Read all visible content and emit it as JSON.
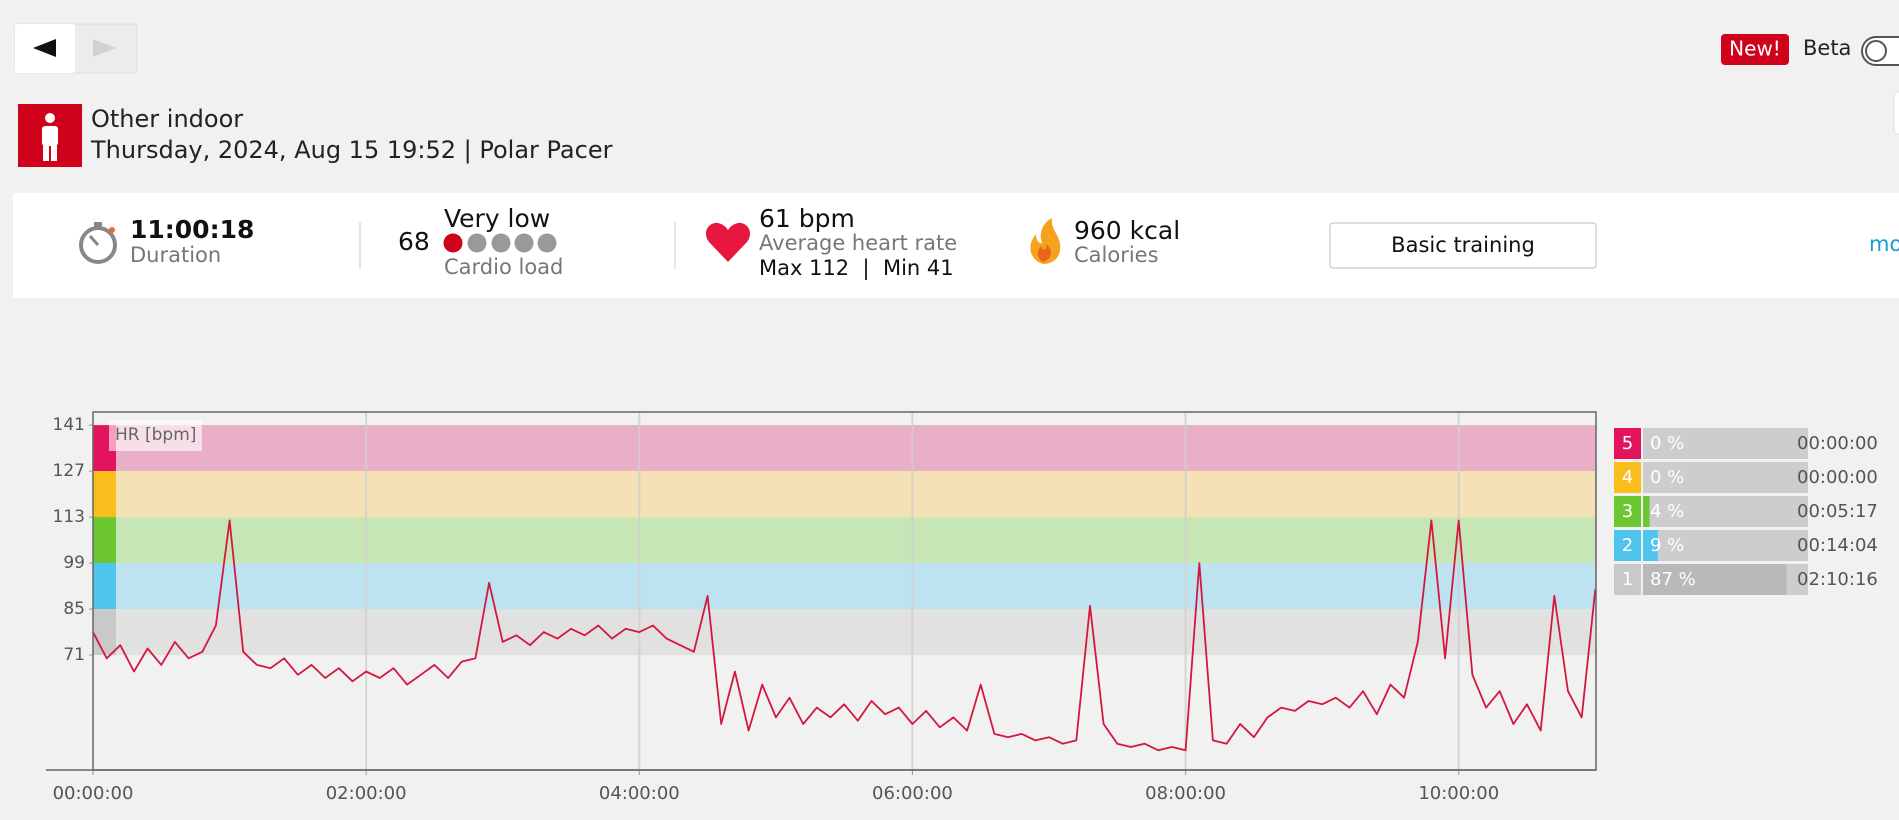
{
  "header": {
    "badge": "New!",
    "beta_label": "Beta"
  },
  "activity": {
    "sport": "Other indoor",
    "details": "Thursday, 2024, Aug 15 19:52 | Polar Pacer"
  },
  "summary": {
    "duration": "11:00:18",
    "duration_label": "Duration",
    "cardio_load": 68,
    "cardio_load_status": "Very low",
    "cardio_load_label": "Cardio load",
    "avg_hr": "61 bpm",
    "avg_hr_label": "Average heart rate",
    "max_min_hr": "Max 112  |  Min 41",
    "calories": "960 kcal",
    "calories_label": "Calories",
    "training_button": "Basic training",
    "more_link": "mo"
  },
  "chart_data": {
    "type": "line",
    "y_label": "HR [bpm]",
    "color": "#d4173f",
    "xlim": [
      0,
      11.005
    ],
    "ylim": [
      36,
      145
    ],
    "xticks": [
      {
        "value": 0,
        "label": "00:00:00"
      },
      {
        "value": 2,
        "label": "02:00:00"
      },
      {
        "value": 4,
        "label": "04:00:00"
      },
      {
        "value": 6,
        "label": "06:00:00"
      },
      {
        "value": 8,
        "label": "08:00:00"
      },
      {
        "value": 10,
        "label": "10:00:00"
      }
    ],
    "yticks": [
      71,
      85,
      99,
      113,
      127,
      141
    ],
    "x": [
      0.0,
      0.1,
      0.2,
      0.3,
      0.4,
      0.5,
      0.6,
      0.7,
      0.8,
      0.9,
      1.0,
      1.1,
      1.2,
      1.3,
      1.4,
      1.5,
      1.6,
      1.7,
      1.8,
      1.9,
      2.0,
      2.1,
      2.2,
      2.3,
      2.4,
      2.5,
      2.6,
      2.7,
      2.8,
      2.9,
      3.0,
      3.1,
      3.2,
      3.3,
      3.4,
      3.5,
      3.6,
      3.7,
      3.8,
      3.9,
      4.0,
      4.1,
      4.2,
      4.3,
      4.4,
      4.5,
      4.6,
      4.7,
      4.8,
      4.9,
      5.0,
      5.1,
      5.2,
      5.3,
      5.4,
      5.5,
      5.6,
      5.7,
      5.8,
      5.9,
      6.0,
      6.1,
      6.2,
      6.3,
      6.4,
      6.5,
      6.6,
      6.7,
      6.8,
      6.9,
      7.0,
      7.1,
      7.2,
      7.3,
      7.4,
      7.5,
      7.6,
      7.7,
      7.8,
      7.9,
      8.0,
      8.1,
      8.2,
      8.3,
      8.4,
      8.5,
      8.6,
      8.7,
      8.8,
      8.9,
      9.0,
      9.1,
      9.2,
      9.3,
      9.4,
      9.5,
      9.6,
      9.7,
      9.8,
      9.9,
      10.0,
      10.1,
      10.2,
      10.3,
      10.4,
      10.5,
      10.6,
      10.7,
      10.8,
      10.9,
      11.0
    ],
    "values": [
      78,
      70,
      74,
      66,
      73,
      68,
      75,
      70,
      72,
      80,
      112,
      72,
      68,
      67,
      70,
      65,
      68,
      64,
      67,
      63,
      66,
      64,
      67,
      62,
      65,
      68,
      64,
      69,
      70,
      93,
      75,
      77,
      74,
      78,
      76,
      79,
      77,
      80,
      76,
      79,
      78,
      80,
      76,
      74,
      72,
      89,
      50,
      66,
      48,
      62,
      52,
      58,
      50,
      55,
      52,
      56,
      51,
      57,
      53,
      55,
      50,
      54,
      49,
      52,
      48,
      62,
      47,
      46,
      47,
      45,
      46,
      44,
      45,
      86,
      50,
      44,
      43,
      44,
      42,
      43,
      42,
      99,
      45,
      44,
      50,
      46,
      52,
      55,
      54,
      57,
      56,
      58,
      55,
      60,
      53,
      62,
      58,
      75,
      112,
      70,
      112,
      65,
      55,
      60,
      50,
      56,
      48,
      89,
      60,
      52,
      91
    ],
    "zones": [
      {
        "zone": "5",
        "color": "#e4135e",
        "band_color": "#e9afc6",
        "percent": 0,
        "percent_label": "0 %",
        "time": "00:00:00"
      },
      {
        "zone": "4",
        "color": "#f9be1c",
        "band_color": "#f4e1b6",
        "percent": 0,
        "percent_label": "0 %",
        "time": "00:00:00"
      },
      {
        "zone": "3",
        "color": "#6dc732",
        "band_color": "#c7e6b6",
        "percent": 4,
        "percent_label": "4 %",
        "time": "00:05:17"
      },
      {
        "zone": "2",
        "color": "#4fc4ec",
        "band_color": "#bde3f1",
        "percent": 9,
        "percent_label": "9 %",
        "time": "00:14:04"
      },
      {
        "zone": "1",
        "color": "#c9c9c9",
        "band_color": "#e1e1e1",
        "percent": 87,
        "percent_label": "87 %",
        "time": "02:10:16"
      }
    ]
  }
}
